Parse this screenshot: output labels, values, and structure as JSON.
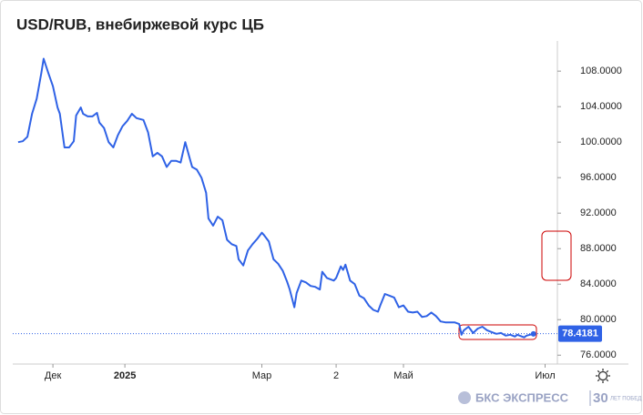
{
  "chart_data": {
    "type": "line",
    "title": "USD/RUB, внебиржевой курс ЦБ",
    "x": [
      -15,
      -13,
      -11,
      -9,
      -7,
      -5,
      -4,
      -2,
      0,
      2,
      3,
      5,
      7,
      9,
      10,
      12,
      13,
      15,
      17,
      19,
      20,
      22,
      24,
      26,
      28,
      30,
      32,
      34,
      36,
      39,
      41,
      43,
      45,
      47,
      49,
      51,
      53,
      55,
      57,
      59,
      60,
      62,
      64,
      66,
      67,
      69,
      71,
      73,
      75,
      77,
      79,
      80,
      82,
      84,
      86,
      88,
      90,
      91,
      93,
      95,
      97,
      99,
      101,
      102,
      104,
      105,
      107,
      109,
      111,
      113,
      115,
      116,
      118,
      121,
      122,
      124,
      125,
      126,
      128,
      130,
      132,
      134,
      136,
      138,
      140,
      141,
      143,
      145,
      147,
      149,
      151,
      153,
      155,
      157,
      159,
      161,
      163,
      165,
      167,
      169,
      173,
      175,
      176,
      177,
      179,
      181,
      183,
      185,
      187,
      189,
      191,
      193,
      195,
      197,
      199,
      200,
      203,
      204,
      207
    ],
    "series": [
      {
        "name": "USD/RUB",
        "color": "#2f62e6",
        "values": [
          100.0,
          100.1,
          100.6,
          103.2,
          104.9,
          107.8,
          109.4,
          107.8,
          106.3,
          103.9,
          103.2,
          99.4,
          99.4,
          100.1,
          103.0,
          103.9,
          103.2,
          102.9,
          102.9,
          103.3,
          102.2,
          101.6,
          100.0,
          99.4,
          100.8,
          101.8,
          102.4,
          103.2,
          102.7,
          102.5,
          101.1,
          98.4,
          98.8,
          98.4,
          97.2,
          97.9,
          97.9,
          97.7,
          100.0,
          98.1,
          97.2,
          96.9,
          96.0,
          94.3,
          91.4,
          90.6,
          91.6,
          91.2,
          89.0,
          88.5,
          88.3,
          86.8,
          86.1,
          87.8,
          88.5,
          89.1,
          89.8,
          89.5,
          88.8,
          86.8,
          86.3,
          85.5,
          84.2,
          83.4,
          81.4,
          83.0,
          84.4,
          84.2,
          83.8,
          83.7,
          83.4,
          85.4,
          84.7,
          84.4,
          84.7,
          86.0,
          85.6,
          86.2,
          84.4,
          84.0,
          82.7,
          82.4,
          81.6,
          81.1,
          80.9,
          81.6,
          82.9,
          82.7,
          82.5,
          81.4,
          81.6,
          80.9,
          80.8,
          80.9,
          80.3,
          80.4,
          80.8,
          80.4,
          79.8,
          79.7,
          79.7,
          79.5,
          78.3,
          78.8,
          79.2,
          78.5,
          79.0,
          79.2,
          78.8,
          78.6,
          78.4,
          78.5,
          78.2,
          78.3,
          78.1,
          78.3,
          78.0,
          78.2,
          78.4
        ]
      }
    ],
    "last_price": {
      "value": 78.4181,
      "label": "78.4181"
    },
    "xlim": [
      -17.3,
      217.3
    ],
    "xticks": [
      {
        "value": 0,
        "label": "Дек"
      },
      {
        "value": 31,
        "label": "2025"
      },
      {
        "value": 90,
        "label": "Мар"
      },
      {
        "value": 122,
        "label": "2"
      },
      {
        "value": 151,
        "label": "Май"
      },
      {
        "value": 212,
        "label": "Июл"
      }
    ],
    "ylim": [
      75,
      111.4
    ],
    "yticks": [
      {
        "value": 76,
        "label": "76.0000"
      },
      {
        "value": 80,
        "label": "80.0000"
      },
      {
        "value": 84,
        "label": "84.0000"
      },
      {
        "value": 88,
        "label": "88.0000"
      },
      {
        "value": 92,
        "label": "92.0000"
      },
      {
        "value": 96,
        "label": "96.0000"
      },
      {
        "value": 100,
        "label": "100.0000"
      },
      {
        "value": 104,
        "label": "104.0000"
      },
      {
        "value": 108,
        "label": "108.0000"
      }
    ],
    "grid": false,
    "axis_side": "right"
  },
  "footer": {
    "brand": "БКС ЭКСПРЕСС",
    "badge": "30",
    "badge_text": "ЛЕТ ПОБЕД"
  }
}
